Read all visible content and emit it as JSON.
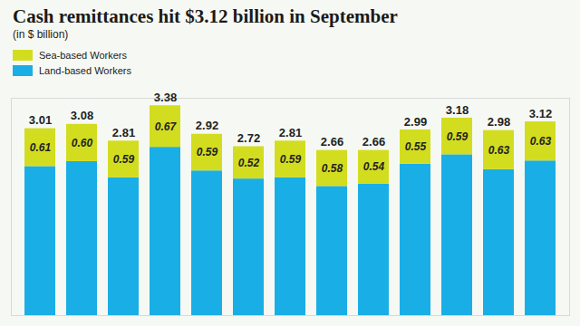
{
  "chart_data": {
    "type": "bar",
    "title": "Cash remittances hit $3.12 billion in September",
    "subtitle": "(in $ billion)",
    "categories": [
      null,
      null,
      null,
      null,
      null,
      null,
      null,
      null,
      null,
      null,
      null,
      null,
      null
    ],
    "stacked": true,
    "legend": "top-left",
    "tick_labels": false,
    "grid": false,
    "ylim": [
      0,
      3.5
    ],
    "yticks": [],
    "totals": [
      3.01,
      3.08,
      2.81,
      3.38,
      2.92,
      2.72,
      2.81,
      2.66,
      2.66,
      2.99,
      3.18,
      2.98,
      3.12
    ],
    "series": [
      {
        "name": "Sea-based Workers",
        "color": "#d3dd1f",
        "data_labels": true,
        "values": [
          0.61,
          0.6,
          0.59,
          0.67,
          0.59,
          0.52,
          0.59,
          0.58,
          0.54,
          0.55,
          0.59,
          0.63,
          0.63
        ],
        "value_labels": [
          "0.61",
          "0.60",
          "0.59",
          "0.67",
          "0.59",
          "0.52",
          "0.59",
          "0.58",
          "0.54",
          "0.55",
          "0.59",
          "0.63",
          "0.63"
        ]
      },
      {
        "name": "Land-based Workers",
        "color": "#1aaee6",
        "data_labels": false,
        "values": [
          2.4,
          2.48,
          2.22,
          2.71,
          2.33,
          2.2,
          2.22,
          2.08,
          2.12,
          2.44,
          2.59,
          2.35,
          2.49
        ]
      }
    ]
  }
}
